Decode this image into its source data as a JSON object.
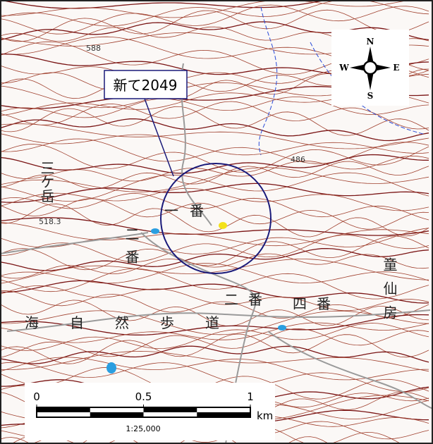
{
  "callout": {
    "label": "新て2049"
  },
  "compass": {
    "north": "N",
    "south": "S",
    "east": "E",
    "west": "W"
  },
  "elevations": [
    588,
    486,
    518.3
  ],
  "place_labels": {
    "mountain": "三ケ岳",
    "area_1": "一番",
    "area_1b": "二番",
    "area_2": "二番",
    "area_4": "四番",
    "village": "童仙房",
    "trail": "海自然歩道"
  },
  "scale_bar": {
    "ticks": [
      0,
      0.5,
      1
    ],
    "unit": "km",
    "ratio": "1:25,000"
  }
}
